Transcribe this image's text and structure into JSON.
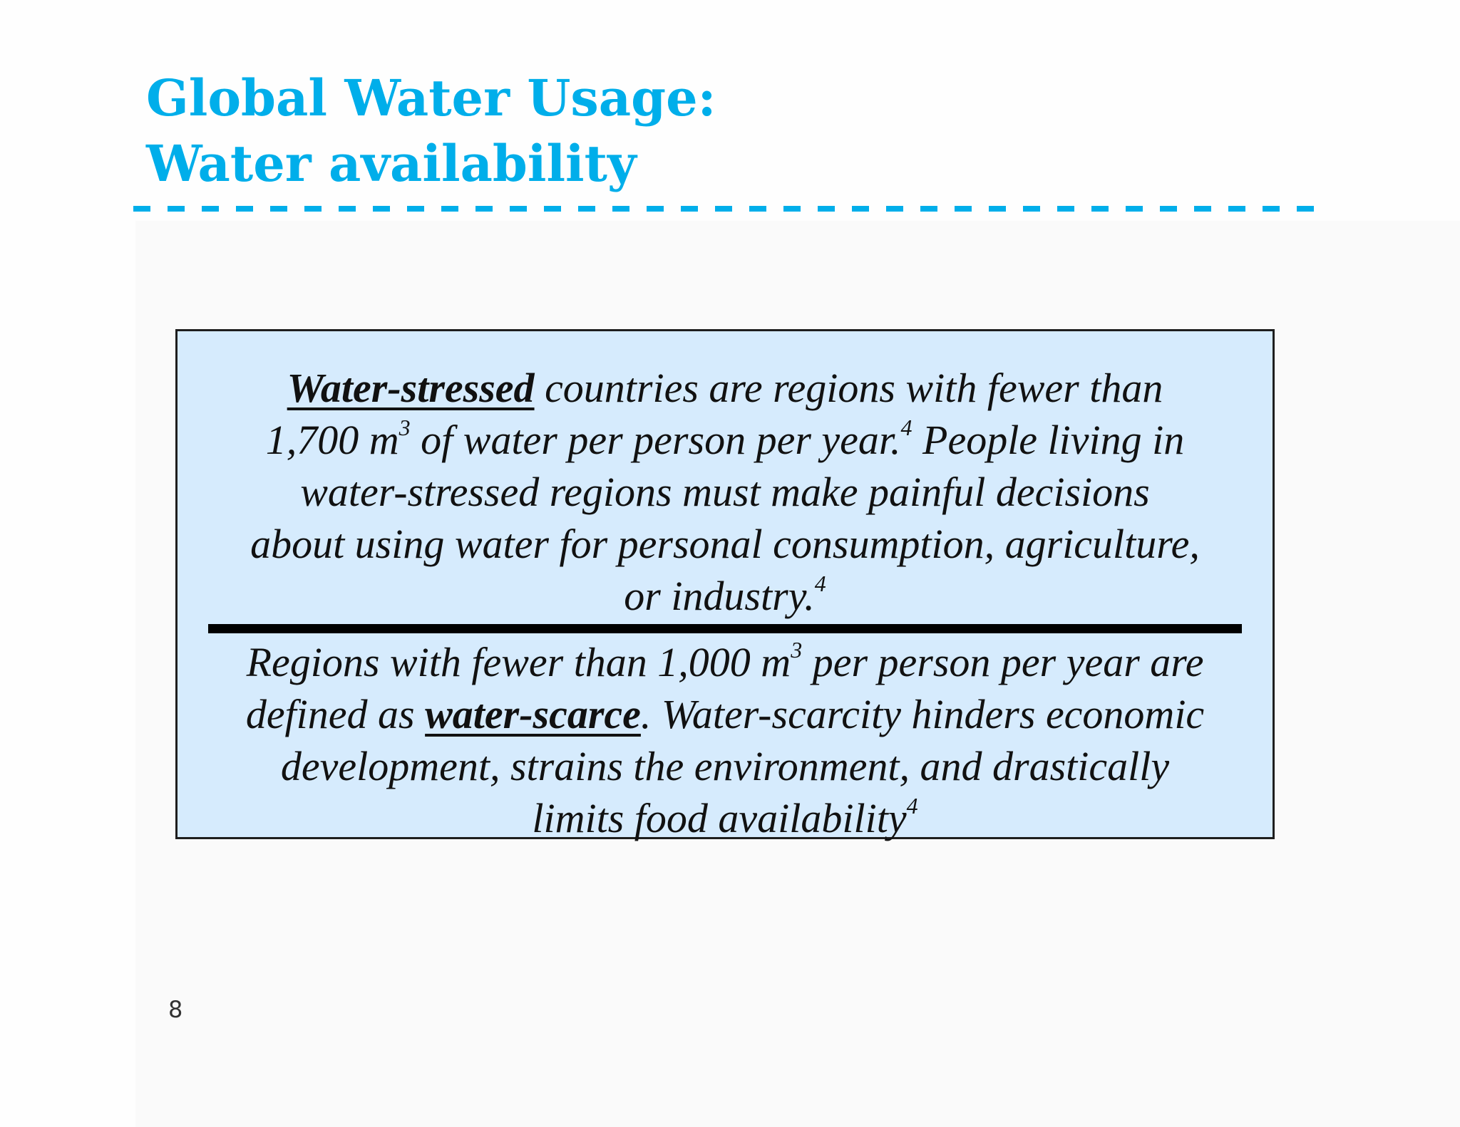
{
  "title": {
    "line1": "Global Water Usage:",
    "line2": "Water availability"
  },
  "colors": {
    "title": "#00aeea",
    "callout_background": "#d6ebfd",
    "rule": "#00aeea"
  },
  "callout": {
    "stressed": {
      "term": "Water-stressed",
      "line1_rest": "countries are regions with fewer than",
      "line2_a": "1,700 m",
      "sup_exp": "3",
      "line2_b": "of water per person per year.",
      "sup_ref": "4",
      "line2_c": "People living in",
      "line3": "water-stressed  regions must make painful decisions",
      "line4": "about using water for personal consumption, agriculture,",
      "line5": "or industry.",
      "sup_ref2": "4"
    },
    "scarce": {
      "line1_a": "Regions with fewer than 1,000 m",
      "sup_exp": "3",
      "line1_b": "per person per year are",
      "line2_a": "defined as",
      "term": "water-scarce",
      "line2_b": ". Water-scarcity hinders economic",
      "line3": "development, strains the environment, and drastically",
      "line4": "limits food availability",
      "sup_ref": "4"
    }
  },
  "page_number": "8"
}
